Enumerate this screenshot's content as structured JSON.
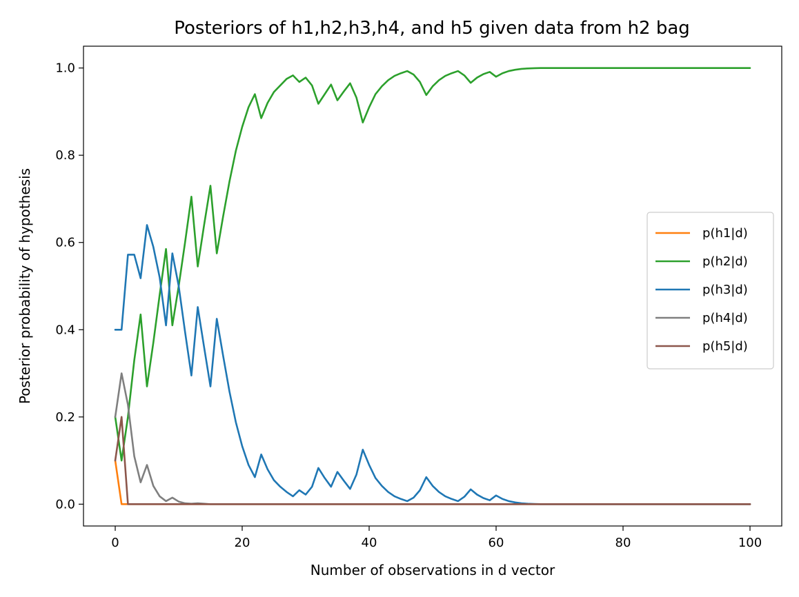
{
  "chart_data": {
    "type": "line",
    "title": "Posteriors of h1,h2,h3,h4, and h5 given data from h2 bag",
    "xlabel": "Number of observations in d vector",
    "ylabel": "Posterior probability of hypothesis",
    "xlim": [
      -5,
      105
    ],
    "ylim": [
      -0.05,
      1.05
    ],
    "xticks": [
      0,
      20,
      40,
      60,
      80,
      100
    ],
    "xtick_labels": [
      "0",
      "20",
      "40",
      "60",
      "80",
      "100"
    ],
    "yticks": [
      0.0,
      0.2,
      0.4,
      0.6,
      0.8,
      1.0
    ],
    "ytick_labels": [
      "0.0",
      "0.2",
      "0.4",
      "0.6",
      "0.8",
      "1.0"
    ],
    "grid": false,
    "legend_position": "center-right",
    "series": [
      {
        "name": "p(h1|d)",
        "color": "#ff7f0e",
        "points": [
          [
            0,
            0.1
          ],
          [
            1,
            0.0
          ],
          [
            100,
            0.0
          ]
        ]
      },
      {
        "name": "p(h2|d)",
        "color": "#2ca02c",
        "points": [
          [
            0,
            0.2
          ],
          [
            1,
            0.1
          ],
          [
            2,
            0.2
          ],
          [
            3,
            0.33
          ],
          [
            4,
            0.435
          ],
          [
            5,
            0.27
          ],
          [
            6,
            0.37
          ],
          [
            7,
            0.48
          ],
          [
            8,
            0.585
          ],
          [
            9,
            0.41
          ],
          [
            10,
            0.5
          ],
          [
            11,
            0.6
          ],
          [
            12,
            0.705
          ],
          [
            13,
            0.545
          ],
          [
            14,
            0.64
          ],
          [
            15,
            0.73
          ],
          [
            16,
            0.575
          ],
          [
            17,
            0.66
          ],
          [
            18,
            0.74
          ],
          [
            19,
            0.81
          ],
          [
            20,
            0.865
          ],
          [
            21,
            0.91
          ],
          [
            22,
            0.94
          ],
          [
            23,
            0.885
          ],
          [
            24,
            0.92
          ],
          [
            25,
            0.945
          ],
          [
            26,
            0.96
          ],
          [
            27,
            0.975
          ],
          [
            28,
            0.983
          ],
          [
            29,
            0.968
          ],
          [
            30,
            0.978
          ],
          [
            31,
            0.96
          ],
          [
            32,
            0.918
          ],
          [
            33,
            0.94
          ],
          [
            34,
            0.962
          ],
          [
            35,
            0.926
          ],
          [
            36,
            0.946
          ],
          [
            37,
            0.965
          ],
          [
            38,
            0.932
          ],
          [
            39,
            0.875
          ],
          [
            40,
            0.91
          ],
          [
            41,
            0.94
          ],
          [
            42,
            0.958
          ],
          [
            43,
            0.972
          ],
          [
            44,
            0.982
          ],
          [
            45,
            0.988
          ],
          [
            46,
            0.993
          ],
          [
            47,
            0.985
          ],
          [
            48,
            0.968
          ],
          [
            49,
            0.938
          ],
          [
            50,
            0.958
          ],
          [
            51,
            0.972
          ],
          [
            52,
            0.982
          ],
          [
            53,
            0.988
          ],
          [
            54,
            0.993
          ],
          [
            55,
            0.983
          ],
          [
            56,
            0.966
          ],
          [
            57,
            0.978
          ],
          [
            58,
            0.986
          ],
          [
            59,
            0.991
          ],
          [
            60,
            0.98
          ],
          [
            61,
            0.988
          ],
          [
            62,
            0.993
          ],
          [
            63,
            0.996
          ],
          [
            64,
            0.998
          ],
          [
            65,
            0.999
          ],
          [
            66,
            0.9995
          ],
          [
            67,
            1.0
          ],
          [
            68,
            1.0
          ],
          [
            69,
            1.0
          ],
          [
            70,
            1.0
          ],
          [
            72,
            1.0
          ],
          [
            75,
            1.0
          ],
          [
            80,
            1.0
          ],
          [
            90,
            1.0
          ],
          [
            100,
            1.0
          ]
        ]
      },
      {
        "name": "p(h3|d)",
        "color": "#1f77b4",
        "points": [
          [
            0,
            0.4
          ],
          [
            1,
            0.4
          ],
          [
            2,
            0.572
          ],
          [
            3,
            0.572
          ],
          [
            4,
            0.518
          ],
          [
            5,
            0.64
          ],
          [
            6,
            0.59
          ],
          [
            7,
            0.52
          ],
          [
            8,
            0.41
          ],
          [
            9,
            0.575
          ],
          [
            10,
            0.5
          ],
          [
            11,
            0.395
          ],
          [
            12,
            0.295
          ],
          [
            13,
            0.452
          ],
          [
            14,
            0.36
          ],
          [
            15,
            0.27
          ],
          [
            16,
            0.425
          ],
          [
            17,
            0.34
          ],
          [
            18,
            0.258
          ],
          [
            19,
            0.188
          ],
          [
            20,
            0.133
          ],
          [
            21,
            0.09
          ],
          [
            22,
            0.062
          ],
          [
            23,
            0.114
          ],
          [
            24,
            0.08
          ],
          [
            25,
            0.055
          ],
          [
            26,
            0.04
          ],
          [
            27,
            0.028
          ],
          [
            28,
            0.018
          ],
          [
            29,
            0.032
          ],
          [
            30,
            0.022
          ],
          [
            31,
            0.04
          ],
          [
            32,
            0.083
          ],
          [
            33,
            0.06
          ],
          [
            34,
            0.04
          ],
          [
            35,
            0.074
          ],
          [
            36,
            0.054
          ],
          [
            37,
            0.035
          ],
          [
            38,
            0.068
          ],
          [
            39,
            0.125
          ],
          [
            40,
            0.09
          ],
          [
            41,
            0.06
          ],
          [
            42,
            0.042
          ],
          [
            43,
            0.028
          ],
          [
            44,
            0.018
          ],
          [
            45,
            0.012
          ],
          [
            46,
            0.007
          ],
          [
            47,
            0.015
          ],
          [
            48,
            0.032
          ],
          [
            49,
            0.062
          ],
          [
            50,
            0.042
          ],
          [
            51,
            0.028
          ],
          [
            52,
            0.018
          ],
          [
            53,
            0.012
          ],
          [
            54,
            0.007
          ],
          [
            55,
            0.017
          ],
          [
            56,
            0.034
          ],
          [
            57,
            0.022
          ],
          [
            58,
            0.014
          ],
          [
            59,
            0.009
          ],
          [
            60,
            0.02
          ],
          [
            61,
            0.012
          ],
          [
            62,
            0.007
          ],
          [
            63,
            0.004
          ],
          [
            64,
            0.002
          ],
          [
            65,
            0.001
          ],
          [
            66,
            0.0005
          ],
          [
            67,
            0.0
          ],
          [
            100,
            0.0
          ]
        ]
      },
      {
        "name": "p(h4|d)",
        "color": "#7f7f7f",
        "points": [
          [
            0,
            0.2
          ],
          [
            1,
            0.3
          ],
          [
            2,
            0.228
          ],
          [
            3,
            0.11
          ],
          [
            4,
            0.05
          ],
          [
            5,
            0.09
          ],
          [
            6,
            0.042
          ],
          [
            7,
            0.018
          ],
          [
            8,
            0.007
          ],
          [
            9,
            0.015
          ],
          [
            10,
            0.006
          ],
          [
            11,
            0.002
          ],
          [
            12,
            0.001
          ],
          [
            13,
            0.002
          ],
          [
            14,
            0.001
          ],
          [
            15,
            0.0
          ],
          [
            100,
            0.0
          ]
        ]
      },
      {
        "name": "p(h5|d)",
        "color": "#8c564b",
        "points": [
          [
            0,
            0.1
          ],
          [
            1,
            0.2
          ],
          [
            2,
            0.0
          ],
          [
            100,
            0.0
          ]
        ]
      }
    ]
  }
}
